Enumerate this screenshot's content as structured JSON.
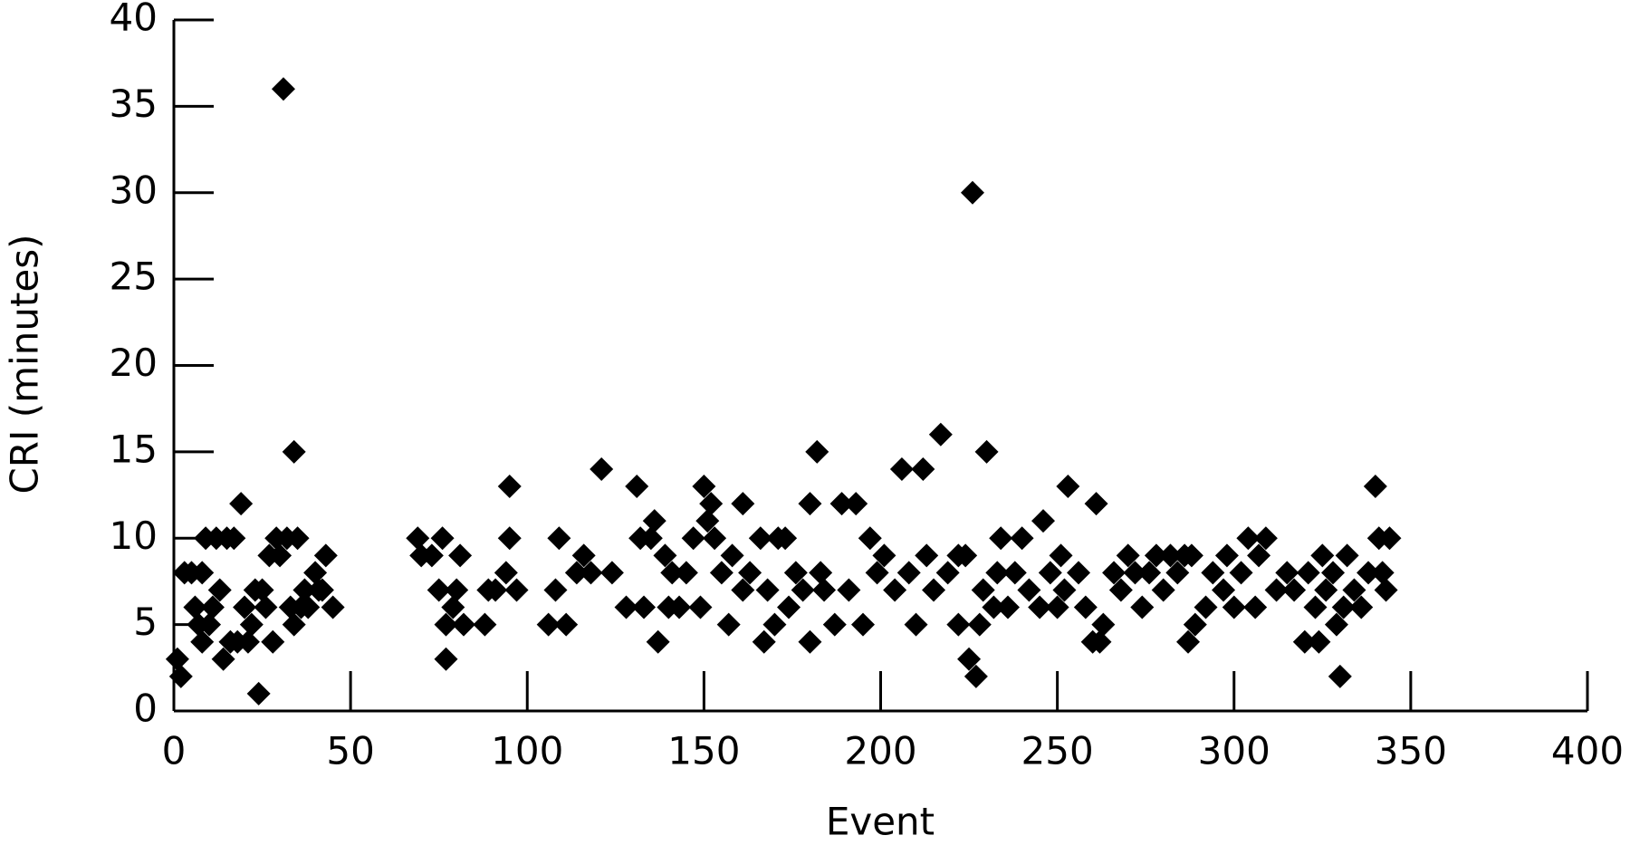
{
  "chart_data": {
    "type": "scatter",
    "x_label": "Event",
    "y_label": "CRI (minutes)",
    "color": "#000000",
    "xlim": [
      0,
      400
    ],
    "xticks": [
      0,
      50,
      100,
      150,
      200,
      250,
      300,
      350,
      400
    ],
    "ylim": [
      0,
      40
    ],
    "yticks": [
      0,
      5,
      10,
      15,
      20,
      25,
      30,
      35,
      40
    ],
    "x": [
      1,
      2,
      3,
      5,
      6,
      7,
      8,
      8,
      9,
      10,
      11,
      12,
      13,
      14,
      15,
      16,
      17,
      18,
      19,
      20,
      21,
      22,
      23,
      24,
      25,
      26,
      27,
      28,
      29,
      30,
      31,
      32,
      33,
      34,
      34,
      35,
      36,
      37,
      38,
      40,
      41,
      42,
      43,
      45,
      69,
      70,
      73,
      75,
      76,
      77,
      77,
      79,
      80,
      81,
      82,
      88,
      89,
      91,
      94,
      95,
      95,
      97,
      106,
      108,
      109,
      111,
      114,
      116,
      118,
      121,
      124,
      128,
      131,
      132,
      133,
      135,
      136,
      137,
      139,
      140,
      141,
      143,
      145,
      147,
      149,
      150,
      151,
      152,
      153,
      155,
      157,
      158,
      161,
      161,
      163,
      166,
      167,
      168,
      170,
      171,
      173,
      174,
      176,
      178,
      180,
      180,
      182,
      183,
      184,
      187,
      189,
      191,
      193,
      195,
      197,
      199,
      201,
      204,
      206,
      208,
      210,
      212,
      213,
      215,
      217,
      219,
      222,
      222,
      224,
      225,
      226,
      227,
      228,
      229,
      230,
      232,
      233,
      234,
      236,
      238,
      240,
      242,
      245,
      246,
      248,
      250,
      251,
      252,
      253,
      256,
      258,
      260,
      261,
      262,
      263,
      266,
      268,
      270,
      272,
      274,
      276,
      278,
      280,
      282,
      284,
      286,
      287,
      288,
      289,
      292,
      294,
      297,
      298,
      300,
      302,
      304,
      306,
      307,
      309,
      312,
      315,
      317,
      320,
      321,
      323,
      324,
      325,
      326,
      328,
      329,
      330,
      331,
      332,
      334,
      336,
      338,
      340,
      341,
      342,
      343,
      344
    ],
    "y": [
      3,
      2,
      8,
      8,
      6,
      5,
      4,
      8,
      10,
      5,
      6,
      10,
      7,
      3,
      10,
      4,
      10,
      4,
      12,
      6,
      4,
      5,
      7,
      1,
      7,
      6,
      9,
      4,
      10,
      9,
      36,
      10,
      6,
      15,
      5,
      10,
      6,
      7,
      6,
      8,
      7,
      7,
      9,
      6,
      10,
      9,
      9,
      7,
      10,
      5,
      3,
      6,
      7,
      9,
      5,
      5,
      7,
      7,
      8,
      13,
      10,
      7,
      5,
      7,
      10,
      5,
      8,
      9,
      8,
      14,
      8,
      6,
      13,
      10,
      6,
      10,
      11,
      4,
      9,
      6,
      8,
      6,
      8,
      10,
      6,
      13,
      11,
      12,
      10,
      8,
      5,
      9,
      12,
      7,
      8,
      10,
      4,
      7,
      5,
      10,
      10,
      6,
      8,
      7,
      4,
      12,
      15,
      8,
      7,
      5,
      12,
      7,
      12,
      5,
      10,
      8,
      9,
      7,
      14,
      8,
      5,
      14,
      9,
      7,
      16,
      8,
      9,
      5,
      9,
      3,
      30,
      2,
      5,
      7,
      15,
      6,
      8,
      10,
      6,
      8,
      10,
      7,
      6,
      11,
      8,
      6,
      9,
      7,
      13,
      8,
      6,
      4,
      12,
      4,
      5,
      8,
      7,
      9,
      8,
      6,
      8,
      9,
      7,
      9,
      8,
      9,
      4,
      9,
      5,
      6,
      8,
      7,
      9,
      6,
      8,
      10,
      6,
      9,
      10,
      7,
      8,
      7,
      4,
      8,
      6,
      4,
      9,
      7,
      8,
      5,
      2,
      6,
      9,
      7,
      6,
      8,
      13,
      10,
      8,
      7,
      10
    ]
  }
}
